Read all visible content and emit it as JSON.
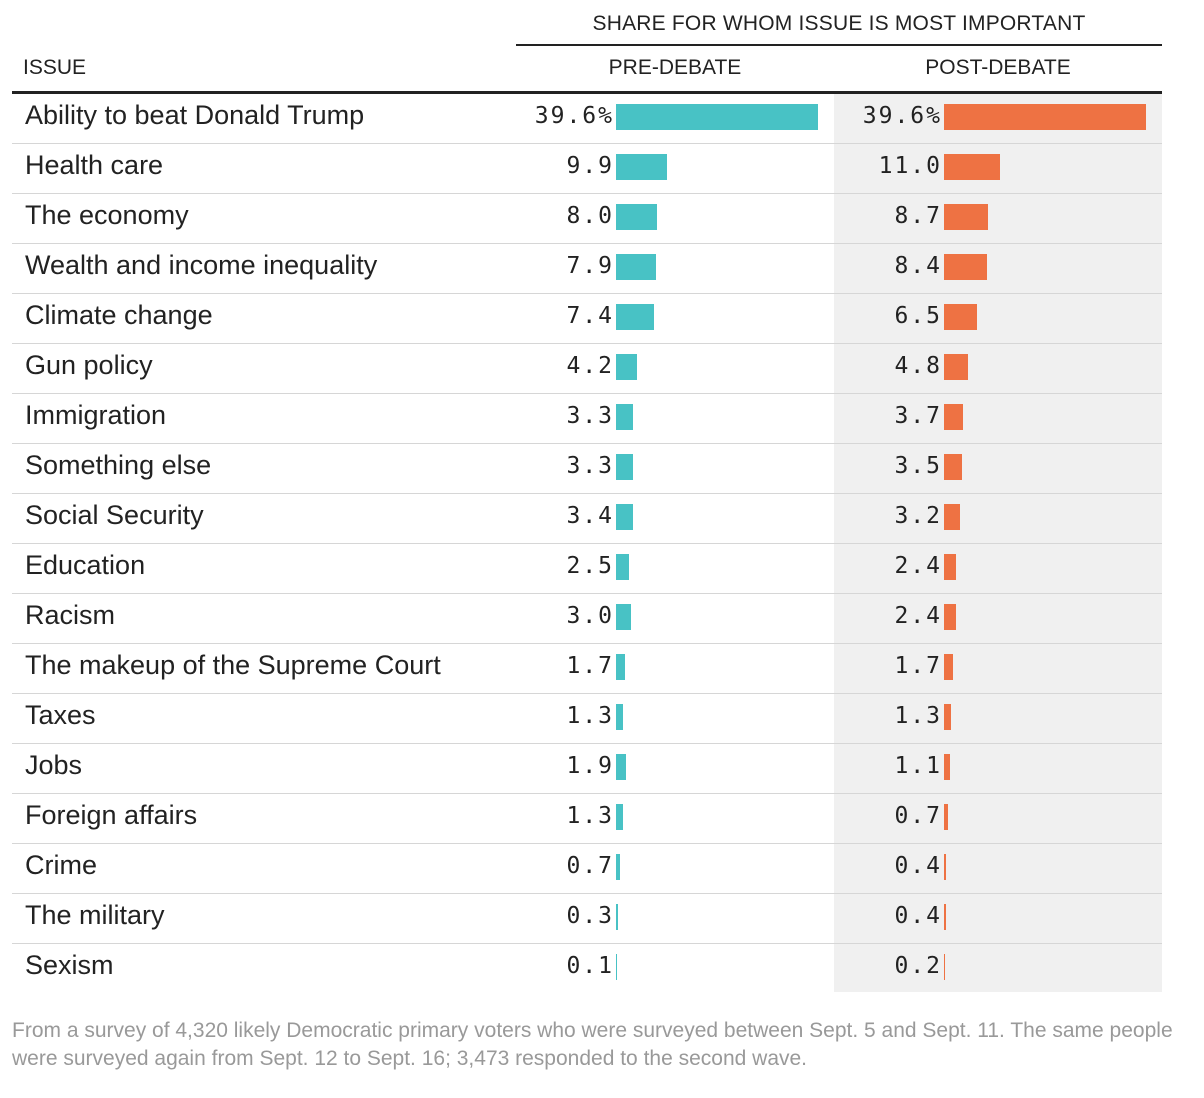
{
  "header": {
    "group_title": "SHARE FOR WHOM ISSUE IS MOST IMPORTANT",
    "issue_col": "ISSUE",
    "pre_col": "PRE-DEBATE",
    "post_col": "POST-DEBATE"
  },
  "colors": {
    "pre": "#48c2c5",
    "post": "#ee7243",
    "post_background": "#f0f0f0"
  },
  "chart_data": {
    "type": "bar",
    "title": "SHARE FOR WHOM ISSUE IS MOST IMPORTANT",
    "unit": "%",
    "xlim": [
      0,
      39.6
    ],
    "categories": [
      "Ability to beat Donald Trump",
      "Health care",
      "The economy",
      "Wealth and income inequality",
      "Climate change",
      "Gun policy",
      "Immigration",
      "Something else",
      "Social Security",
      "Education",
      "Racism",
      "The makeup of the Supreme Court",
      "Taxes",
      "Jobs",
      "Foreign affairs",
      "Crime",
      "The military",
      "Sexism"
    ],
    "series": [
      {
        "name": "PRE-DEBATE",
        "values": [
          39.6,
          9.9,
          8.0,
          7.9,
          7.4,
          4.2,
          3.3,
          3.3,
          3.4,
          2.5,
          3.0,
          1.7,
          1.3,
          1.9,
          1.3,
          0.7,
          0.3,
          0.1
        ],
        "labels": [
          "39.6%",
          "9.9",
          "8.0",
          "7.9",
          "7.4",
          "4.2",
          "3.3",
          "3.3",
          "3.4",
          "2.5",
          "3.0",
          "1.7",
          "1.3",
          "1.9",
          "1.3",
          "0.7",
          "0.3",
          "0.1"
        ]
      },
      {
        "name": "POST-DEBATE",
        "values": [
          39.6,
          11.0,
          8.7,
          8.4,
          6.5,
          4.8,
          3.7,
          3.5,
          3.2,
          2.4,
          2.4,
          1.7,
          1.3,
          1.1,
          0.7,
          0.4,
          0.4,
          0.2
        ],
        "labels": [
          "39.6%",
          "11.0",
          "8.7",
          "8.4",
          "6.5",
          "4.8",
          "3.7",
          "3.5",
          "3.2",
          "2.4",
          "2.4",
          "1.7",
          "1.3",
          "1.1",
          "0.7",
          "0.4",
          "0.4",
          "0.2"
        ]
      }
    ]
  },
  "footnote": "From a survey of 4,320 likely Democratic primary voters who were surveyed between Sept. 5 and Sept. 11. The same people were surveyed again from Sept. 12 to Sept. 16; 3,473 responded to the second wave."
}
